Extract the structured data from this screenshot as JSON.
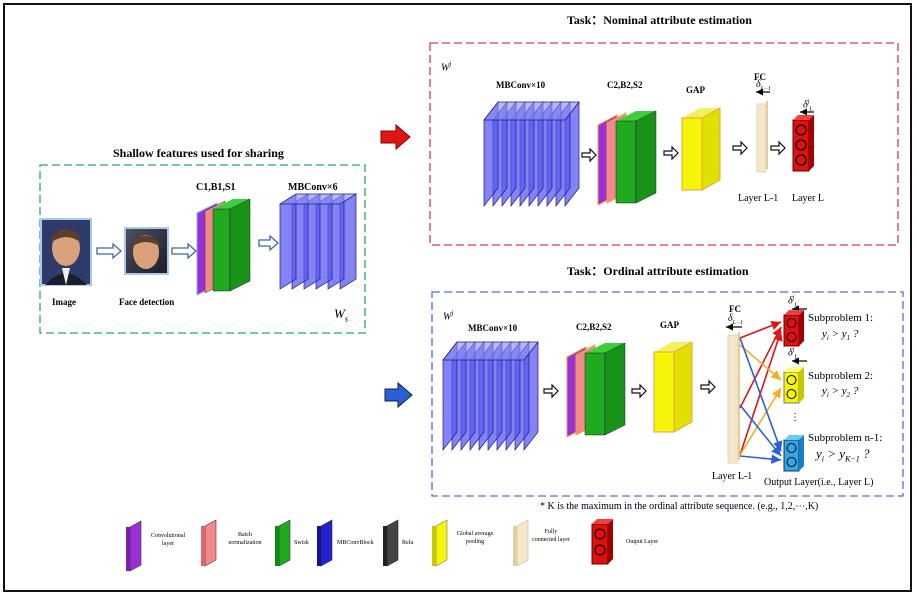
{
  "shared": {
    "title": "Shallow features used for sharing",
    "image_label": "Image",
    "face_label": "Face detection",
    "conv_label": "C1,B1,S1",
    "mbconv_label": "MBConv×6",
    "weight_label": "W",
    "weight_sub": "s"
  },
  "nominal": {
    "title": "Task：Nominal attribute estimation",
    "weight_label": "W",
    "weight_sup": "j",
    "mbconv_label": "MBConv×10",
    "conv_label": "C2,B2,S2",
    "gap_label": "GAP",
    "fc_label": "FC",
    "delta_prev": "δ",
    "delta_prev_sub": "L−1",
    "delta_out": "δ",
    "delta_out_sub": "L",
    "delta_out_sup": "j",
    "layer_prev": "Layer L-1",
    "layer_out": "Layer L"
  },
  "ordinal": {
    "title": "Task：Ordinal attribute estimation",
    "weight_label": "W",
    "weight_sup": "j",
    "mbconv_label": "MBConv×10",
    "conv_label": "C2,B2,S2",
    "gap_label": "GAP",
    "fc_label": "FC",
    "delta_prev": "δ",
    "delta_prev_sub": "L−1",
    "delta_out": "δ",
    "delta_out_sub": "L",
    "delta_out_sup": "j",
    "sub1_title": "Subproblem 1:",
    "sub1_expr": "y",
    "sub1_expr_i": "i",
    "sub1_cmp": " > y",
    "sub1_cmp_sub": "1",
    "sub1_q": " ?",
    "sub2_title": "Subproblem 2:",
    "sub2_expr": "y",
    "sub2_expr_i": "i",
    "sub2_cmp": " > y",
    "sub2_cmp_sub": "2",
    "sub2_q": " ?",
    "sub3_title": "Subproblem n-1:",
    "sub3_expr": "y",
    "sub3_expr_i": "i",
    "sub3_cmp": " > y",
    "sub3_cmp_sub": "K−1",
    "sub3_q": " ?",
    "dots": "⋮",
    "layer_prev": "Layer L-1",
    "layer_out": "Output Layer(i.e., Layer L)"
  },
  "footnote": "* K is the maximum in the ordinal attribute sequence. (e.g., 1,2,⋯,K)",
  "legend": [
    {
      "label": "Convolutional layer",
      "color": "#9b2fd6",
      "icon": "conv-layer-icon"
    },
    {
      "label": "Batch normalization",
      "color": "#f28a8a",
      "icon": "batch-norm-icon"
    },
    {
      "label": "Swish",
      "color": "#1faa1f",
      "icon": "swish-icon"
    },
    {
      "label": "MBConvBlock",
      "color": "#2222cc",
      "icon": "mbconv-block-icon"
    },
    {
      "label": "Relu",
      "color": "#444444",
      "icon": "relu-icon"
    },
    {
      "label": "Global average pooling",
      "color": "#f5f50a",
      "icon": "gap-icon"
    },
    {
      "label": "Fully connected layer",
      "color": "#f4e8cc",
      "icon": "fc-icon"
    },
    {
      "label": "Output Layer",
      "color": "#e01010",
      "icon": "output-layer-icon"
    }
  ],
  "colors": {
    "shared_border": "#2bab57",
    "nominal_border": "#e0383c",
    "ordinal_border": "#4f6fd8",
    "mbconv_fill": "#5a5aef",
    "red_arrow": "#e01515",
    "blue_arrow": "#2a5fd8",
    "yellow_arrow": "#f0b020"
  }
}
